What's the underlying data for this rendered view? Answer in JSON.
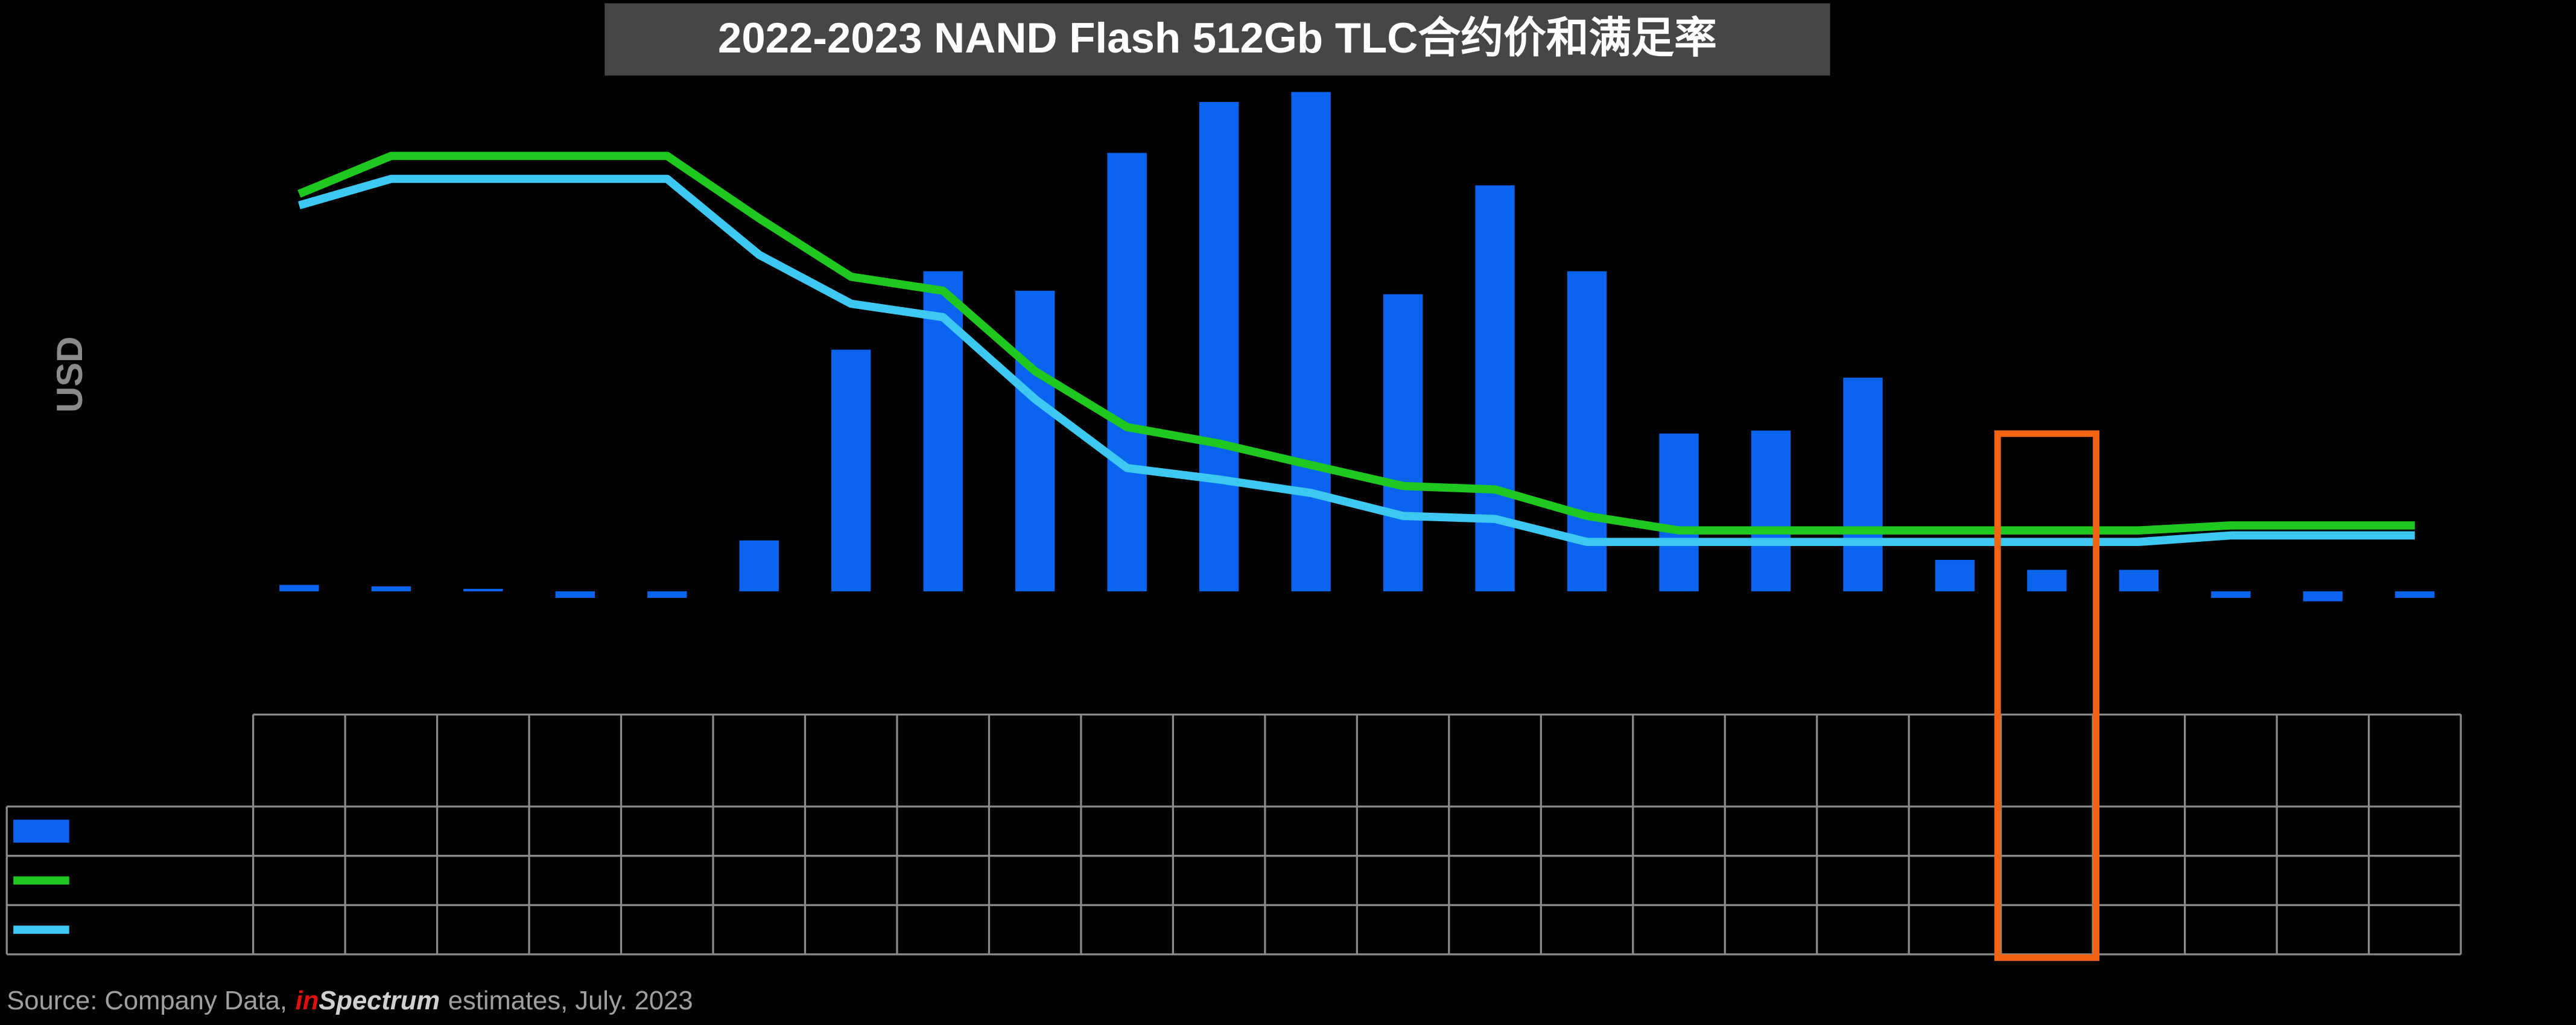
{
  "chart_data": {
    "type": "bar",
    "title": "2022-2023  NAND Flash 512Gb TLC合约价和满足率",
    "y_label": "USD",
    "ylim": [
      -25,
      105
    ],
    "series": [
      {
        "type": "bar",
        "color": "#0a64f0",
        "values": [
          1.3,
          1,
          0.5,
          -1.3,
          -1.3,
          10.2,
          48.4,
          64.1,
          60.2,
          87.8,
          98,
          100,
          59.5,
          81.3,
          64.1,
          31.6,
          32.2,
          42.8,
          6.3,
          4.3,
          4.3,
          -1.3,
          -2,
          -1.3
        ]
      },
      {
        "type": "line",
        "color": "#1ec81e",
        "values": [
          79.6,
          87.2,
          87.2,
          87.2,
          87.2,
          74.7,
          63,
          60.2,
          44.1,
          32.9,
          29.6,
          25.3,
          21.1,
          20.4,
          15.1,
          12.2,
          12.2,
          12.2,
          12.2,
          12.2,
          12.2,
          13.2,
          13.2,
          13.2
        ]
      },
      {
        "type": "line",
        "color": "#3cc8f0",
        "values": [
          77.3,
          82.6,
          82.6,
          82.6,
          82.6,
          67.4,
          57.6,
          54.9,
          38.5,
          24.7,
          22.4,
          19.7,
          15.1,
          14.5,
          9.9,
          9.9,
          9.9,
          9.9,
          9.9,
          9.9,
          9.9,
          11.2,
          11.2,
          11.2
        ]
      }
    ],
    "highlight_index": 19,
    "source": [
      {
        "text": "Source: Company Data,",
        "color": "#a0a0a0",
        "style": "normal"
      },
      {
        "text": "in",
        "color": "#e01010",
        "style": "italic"
      },
      {
        "text": "Spectrum",
        "color": "#d0d0d0",
        "style": "italic"
      },
      {
        "text": "estimates, July. 2023",
        "color": "#a0a0a0",
        "style": "normal"
      }
    ]
  }
}
